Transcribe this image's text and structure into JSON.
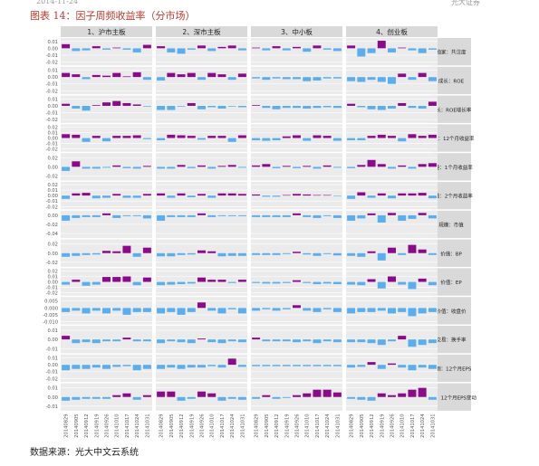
{
  "header": {
    "left_text": "2014-11-24",
    "right_text": "光大证券"
  },
  "figure_title": "图表 14：因子周频收益率（分市场）",
  "source_text": "数据来源：光大中文云系统",
  "colors": {
    "positive": "#8B0A8B",
    "negative": "#5AADEE",
    "strip": "#D9D9D9",
    "panel": "#EBEBEB",
    "grid": "#FFFFFF"
  },
  "chart_data": {
    "type": "bar",
    "facet_columns": [
      "1、沪市主板",
      "2、深市主板",
      "3、中小板",
      "4、创业板"
    ],
    "facet_rows": [
      "独家：共注度",
      "成长：ROE",
      "成长：ROE增长率",
      "动量：12个月收益率",
      "动量：1个月收益率",
      "动量：2个月收益率",
      "规模：市值",
      "价值：BP",
      "价值：EP",
      "价值：收盘价",
      "交易：换手率",
      "预测：12个月EPS",
      "预测：12个月EPS变动"
    ],
    "categories": [
      "20140829",
      "20140905",
      "20140912",
      "20140919",
      "20140926",
      "20141010",
      "20141017",
      "20141024",
      "20141031"
    ],
    "y_ticks": [
      [
        "0.01",
        "0.00",
        "-0.01",
        "-0.02"
      ],
      [
        "0.01",
        "0.00",
        "-0.01",
        "-0.02"
      ],
      [
        "0.01",
        "0.00",
        "-0.01",
        "-0.02"
      ],
      [
        "0.02",
        "0.01",
        "0.00",
        "-0.01",
        "-0.02"
      ],
      [
        "0.02",
        "0.00",
        "-0.02"
      ],
      [
        "0.02",
        "0.01",
        "0.00",
        "-0.01",
        "-0.02"
      ],
      [
        "0.00",
        "-0.02",
        "-0.04"
      ],
      [
        "0.02",
        "0.00",
        "-0.02"
      ],
      [
        "0.02",
        "0.01",
        "0.00",
        "-0.01",
        "-0.02"
      ],
      [
        "0.005",
        "0.000",
        "-0.005",
        "-0.010"
      ],
      [
        "0.01",
        "0.00",
        "-0.01"
      ],
      [
        "0.01",
        "0.00",
        "-0.01",
        "-0.02"
      ],
      [
        "0.01",
        "0.00",
        "-0.01"
      ]
    ],
    "y_ranges": [
      [
        -0.025,
        0.015
      ],
      [
        -0.025,
        0.015
      ],
      [
        -0.025,
        0.015
      ],
      [
        -0.025,
        0.025
      ],
      [
        -0.03,
        0.03
      ],
      [
        -0.025,
        0.025
      ],
      [
        -0.05,
        0.01
      ],
      [
        -0.03,
        0.03
      ],
      [
        -0.025,
        0.025
      ],
      [
        -0.012,
        0.008
      ],
      [
        -0.015,
        0.015
      ],
      [
        -0.025,
        0.015
      ],
      [
        -0.015,
        0.015
      ]
    ],
    "values": [
      [
        [
          0.006,
          -0.004,
          -0.003,
          0.003,
          -0.002,
          0.001,
          -0.002,
          -0.006,
          0.005
        ],
        [
          0.003,
          -0.006,
          -0.008,
          -0.002,
          0.004,
          -0.004,
          0.002,
          0.004,
          -0.003
        ],
        [
          0.001,
          -0.003,
          0.003,
          -0.003,
          0.002,
          -0.005,
          0.004,
          -0.002,
          -0.004
        ],
        [
          0.004,
          -0.012,
          -0.007,
          0.011,
          -0.006,
          0.001,
          -0.003,
          -0.007,
          -0.002
        ]
      ],
      [
        [
          0.006,
          0.004,
          -0.003,
          0.003,
          0.002,
          0.006,
          0.001,
          0.007,
          -0.004
        ],
        [
          -0.005,
          0.006,
          0.004,
          0.006,
          -0.004,
          0.006,
          0.004,
          -0.004,
          0.005
        ],
        [
          -0.002,
          -0.004,
          -0.002,
          -0.003,
          -0.003,
          -0.006,
          -0.005,
          -0.002,
          -0.002
        ],
        [
          -0.006,
          -0.007,
          -0.004,
          -0.007,
          -0.01,
          0.005,
          -0.004,
          0.006,
          -0.006
        ]
      ],
      [
        [
          0.003,
          -0.004,
          -0.007,
          0.001,
          0.005,
          0.007,
          0.004,
          0.002,
          -0.001
        ],
        [
          -0.006,
          -0.006,
          -0.001,
          0.004,
          -0.005,
          -0.002,
          -0.004,
          -0.001,
          -0.002
        ],
        [
          0.001,
          -0.003,
          -0.005,
          -0.003,
          -0.003,
          -0.004,
          -0.003,
          -0.002,
          -0.003
        ],
        [
          0.003,
          -0.002,
          -0.005,
          -0.006,
          -0.004,
          0.004,
          -0.003,
          -0.004,
          0.006
        ]
      ],
      [
        [
          0.007,
          0.006,
          -0.007,
          0.004,
          -0.006,
          0.004,
          0.004,
          0.005,
          -0.002
        ],
        [
          -0.004,
          0.006,
          0.005,
          0.004,
          -0.003,
          0.004,
          0.004,
          -0.007,
          0.005
        ],
        [
          -0.004,
          -0.005,
          -0.004,
          0.003,
          0.005,
          -0.005,
          0.005,
          0.004,
          -0.005
        ],
        [
          -0.004,
          -0.004,
          0.004,
          0.006,
          0.004,
          -0.006,
          0.007,
          0.004,
          0.006
        ]
      ],
      [
        [
          -0.009,
          0.012,
          -0.004,
          -0.004,
          -0.002,
          0.003,
          -0.003,
          -0.004,
          0.002
        ],
        [
          -0.004,
          -0.004,
          0.004,
          -0.003,
          0.003,
          -0.004,
          0.002,
          0.004,
          -0.002
        ],
        [
          0.003,
          0.006,
          -0.003,
          0.002,
          -0.003,
          0.002,
          -0.004,
          0.003,
          -0.002
        ],
        [
          -0.003,
          0.004,
          0.015,
          0.006,
          -0.004,
          0.003,
          -0.004,
          0.006,
          0.008
        ]
      ],
      [
        [
          -0.006,
          0.004,
          0.005,
          -0.005,
          -0.004,
          0.003,
          -0.004,
          -0.004,
          0.003
        ],
        [
          0.004,
          -0.004,
          0.004,
          -0.003,
          0.003,
          -0.004,
          0.004,
          0.004,
          0.003
        ],
        [
          0.002,
          -0.002,
          -0.002,
          0.001,
          0.003,
          0.002,
          0.001,
          0.001,
          -0.001
        ],
        [
          -0.006,
          0.006,
          -0.004,
          0.004,
          -0.005,
          0.004,
          0.004,
          0.005,
          -0.005
        ]
      ],
      [
        [
          -0.012,
          -0.006,
          -0.004,
          -0.004,
          0.004,
          -0.006,
          -0.002,
          -0.002,
          -0.007
        ],
        [
          -0.012,
          -0.004,
          -0.004,
          -0.004,
          0.004,
          -0.004,
          -0.002,
          -0.002,
          -0.002
        ],
        [
          -0.004,
          -0.004,
          -0.004,
          -0.004,
          0.004,
          -0.004,
          -0.006,
          -0.002,
          -0.006
        ],
        [
          -0.012,
          -0.007,
          0.004,
          -0.016,
          0.005,
          -0.012,
          -0.008,
          0.005,
          -0.007
        ]
      ],
      [
        [
          -0.008,
          -0.006,
          -0.004,
          -0.003,
          0.005,
          0.004,
          0.016,
          -0.008,
          0.012
        ],
        [
          -0.007,
          -0.007,
          -0.004,
          -0.003,
          0.006,
          0.004,
          -0.007,
          -0.006,
          -0.006
        ],
        [
          -0.004,
          -0.004,
          -0.004,
          -0.002,
          0.003,
          -0.003,
          -0.006,
          -0.002,
          -0.005
        ],
        [
          -0.006,
          -0.008,
          0.004,
          -0.016,
          0.012,
          -0.004,
          0.018,
          0.008,
          -0.004
        ]
      ],
      [
        [
          -0.005,
          0.004,
          -0.007,
          -0.005,
          0.009,
          0.009,
          0.01,
          -0.006,
          0.008
        ],
        [
          -0.006,
          -0.005,
          -0.004,
          -0.003,
          0.008,
          0.004,
          0.004,
          -0.002,
          0.004
        ],
        [
          -0.002,
          -0.003,
          -0.003,
          -0.002,
          0.003,
          -0.002,
          -0.004,
          -0.003,
          -0.004
        ],
        [
          -0.005,
          -0.006,
          0.005,
          -0.012,
          0.01,
          -0.005,
          -0.013,
          0.006,
          -0.006
        ]
      ],
      [
        [
          -0.003,
          -0.002,
          -0.004,
          -0.002,
          -0.004,
          -0.002,
          -0.005,
          -0.003,
          -0.003
        ],
        [
          -0.004,
          -0.003,
          -0.005,
          -0.003,
          0.004,
          -0.002,
          -0.004,
          -0.001,
          -0.004
        ],
        [
          -0.002,
          -0.001,
          -0.002,
          -0.001,
          0.002,
          -0.002,
          -0.003,
          -0.001,
          -0.003
        ],
        [
          -0.004,
          -0.003,
          -0.003,
          -0.002,
          -0.004,
          -0.003,
          -0.006,
          -0.004,
          -0.003
        ]
      ],
      [
        [
          0.004,
          -0.004,
          -0.003,
          -0.004,
          -0.002,
          -0.002,
          0.002,
          -0.002,
          -0.002
        ],
        [
          -0.004,
          -0.002,
          -0.003,
          -0.004,
          0.001,
          -0.003,
          -0.004,
          -0.002,
          -0.003
        ],
        [
          0.002,
          -0.002,
          -0.002,
          -0.002,
          -0.003,
          -0.002,
          -0.004,
          -0.002,
          -0.003
        ],
        [
          -0.003,
          -0.003,
          -0.004,
          -0.006,
          -0.002,
          0.004,
          -0.008,
          -0.006,
          -0.004
        ]
      ],
      [
        [
          -0.008,
          -0.006,
          -0.006,
          -0.004,
          -0.006,
          -0.003,
          -0.002,
          -0.008,
          -0.006
        ],
        [
          -0.006,
          -0.004,
          -0.006,
          -0.004,
          -0.004,
          -0.002,
          -0.004,
          0.009,
          -0.003
        ],
        [
          -0.002,
          -0.002,
          -0.002,
          -0.002,
          -0.002,
          -0.002,
          -0.002,
          -0.002,
          -0.002
        ],
        [
          -0.004,
          -0.003,
          0.004,
          -0.006,
          0.002,
          -0.004,
          -0.008,
          -0.004,
          -0.006
        ]
      ],
      [
        [
          -0.004,
          -0.003,
          -0.002,
          -0.002,
          -0.002,
          0.002,
          0.004,
          -0.003,
          0.002
        ],
        [
          0.006,
          0.006,
          -0.004,
          -0.002,
          0.006,
          0.004,
          -0.004,
          -0.002,
          -0.003
        ],
        [
          -0.002,
          0.002,
          -0.002,
          -0.001,
          0.002,
          0.004,
          0.008,
          0.008,
          0.005
        ],
        [
          -0.002,
          -0.003,
          -0.004,
          0.004,
          0.002,
          0.004,
          0.008,
          0.01,
          -0.003
        ]
      ]
    ]
  }
}
